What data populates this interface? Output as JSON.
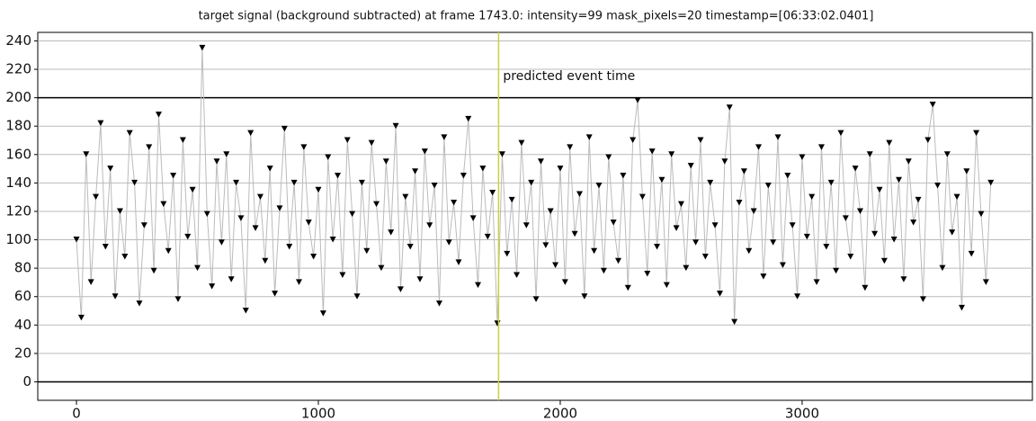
{
  "chart_data": {
    "type": "line",
    "title": "target signal (background subtracted) at frame 1743.0: intensity=99 mask_pixels=20 timestamp=[06:33:02.0401]",
    "annotation": "predicted event time",
    "event_x": 1745,
    "event_color": "#c8d23c",
    "line_color": "#bbbbbb",
    "marker_color": "#000000",
    "grid": true,
    "xlim": [
      -160,
      3952
    ],
    "ylim": [
      -13,
      246
    ],
    "xticks": [
      0,
      1000,
      2000,
      3000
    ],
    "yticks": [
      0,
      20,
      40,
      60,
      80,
      100,
      120,
      140,
      160,
      180,
      200,
      220,
      240
    ],
    "x": [
      0,
      20,
      40,
      60,
      80,
      100,
      120,
      140,
      160,
      180,
      200,
      220,
      240,
      260,
      280,
      300,
      320,
      340,
      360,
      380,
      400,
      420,
      440,
      460,
      480,
      500,
      520,
      540,
      560,
      580,
      600,
      620,
      640,
      660,
      680,
      700,
      720,
      740,
      760,
      780,
      800,
      820,
      840,
      860,
      880,
      900,
      920,
      940,
      960,
      980,
      1000,
      1020,
      1040,
      1060,
      1080,
      1100,
      1120,
      1140,
      1160,
      1180,
      1200,
      1220,
      1240,
      1260,
      1280,
      1300,
      1320,
      1340,
      1360,
      1380,
      1400,
      1420,
      1440,
      1460,
      1480,
      1500,
      1520,
      1540,
      1560,
      1580,
      1600,
      1620,
      1640,
      1660,
      1680,
      1700,
      1720,
      1740,
      1760,
      1780,
      1800,
      1820,
      1840,
      1860,
      1880,
      1900,
      1920,
      1940,
      1960,
      1980,
      2000,
      2020,
      2040,
      2060,
      2080,
      2100,
      2120,
      2140,
      2160,
      2180,
      2200,
      2220,
      2240,
      2260,
      2280,
      2300,
      2320,
      2340,
      2360,
      2380,
      2400,
      2420,
      2440,
      2460,
      2480,
      2500,
      2520,
      2540,
      2560,
      2580,
      2600,
      2620,
      2640,
      2660,
      2680,
      2700,
      2720,
      2740,
      2760,
      2780,
      2800,
      2820,
      2840,
      2860,
      2880,
      2900,
      2920,
      2940,
      2960,
      2980,
      3000,
      3020,
      3040,
      3060,
      3080,
      3100,
      3120,
      3140,
      3160,
      3180,
      3200,
      3220,
      3240,
      3260,
      3280,
      3300,
      3320,
      3340,
      3360,
      3380,
      3400,
      3420,
      3440,
      3460,
      3480,
      3500,
      3520,
      3540,
      3560,
      3580,
      3600,
      3620,
      3640,
      3660,
      3680,
      3700,
      3720,
      3740,
      3760,
      3780
    ],
    "values": [
      100,
      45,
      160,
      70,
      130,
      182,
      95,
      150,
      60,
      120,
      88,
      175,
      140,
      55,
      110,
      165,
      78,
      188,
      125,
      92,
      145,
      58,
      170,
      102,
      135,
      80,
      235,
      118,
      67,
      155,
      98,
      160,
      72,
      140,
      115,
      50,
      175,
      108,
      130,
      85,
      150,
      62,
      122,
      178,
      95,
      140,
      70,
      165,
      112,
      88,
      135,
      48,
      158,
      100,
      145,
      75,
      170,
      118,
      60,
      140,
      92,
      168,
      125,
      80,
      155,
      105,
      180,
      65,
      130,
      95,
      148,
      72,
      162,
      110,
      138,
      55,
      172,
      98,
      126,
      84,
      145,
      185,
      115,
      68,
      150,
      102,
      133,
      41,
      160,
      90,
      128,
      75,
      168,
      110,
      140,
      58,
      155,
      96,
      120,
      82,
      150,
      70,
      165,
      104,
      132,
      60,
      172,
      92,
      138,
      78,
      158,
      112,
      85,
      145,
      66,
      170,
      198,
      130,
      76,
      162,
      95,
      142,
      68,
      160,
      108,
      125,
      80,
      152,
      98,
      170,
      88,
      140,
      110,
      62,
      155,
      193,
      42,
      126,
      148,
      92,
      120,
      165,
      74,
      138,
      98,
      172,
      82,
      145,
      110,
      60,
      158,
      102,
      130,
      70,
      165,
      95,
      140,
      78,
      175,
      115,
      88,
      150,
      120,
      66,
      160,
      104,
      135,
      85,
      168,
      100,
      142,
      72,
      155,
      112,
      128,
      58,
      170,
      195,
      138,
      80,
      160,
      105,
      130,
      52,
      148,
      90,
      175,
      118,
      70,
      140
    ]
  }
}
